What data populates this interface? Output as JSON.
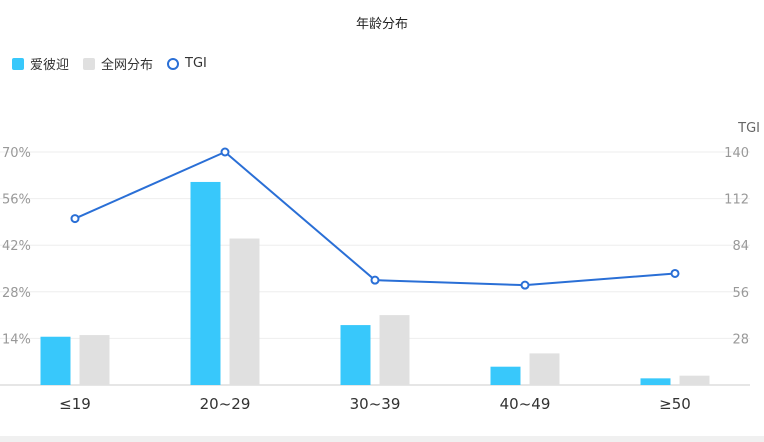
{
  "chart_data": {
    "type": "bar",
    "title": "年龄分布",
    "categories": [
      "≤19",
      "20~29",
      "30~39",
      "40~49",
      "≥50"
    ],
    "series": [
      {
        "name": "爱彼迎",
        "type": "bar",
        "axis": "left",
        "color": "#38c8fb",
        "values": [
          14.5,
          61,
          18,
          5.5,
          2
        ]
      },
      {
        "name": "全网分布",
        "type": "bar",
        "axis": "left",
        "color": "#e0e0e0",
        "values": [
          15,
          44,
          21,
          9.5,
          2.8
        ]
      },
      {
        "name": "TGI",
        "type": "line",
        "axis": "right",
        "color": "#2a6fd6",
        "values": [
          100,
          140,
          63,
          60,
          67
        ]
      }
    ],
    "y_left": {
      "min": 0,
      "max": 70,
      "ticks": [
        "70%",
        "56%",
        "42%",
        "28%",
        "14%"
      ],
      "tick_values": [
        70,
        56,
        42,
        28,
        14
      ]
    },
    "y_right": {
      "label": "TGI",
      "min": 0,
      "max": 140,
      "ticks": [
        "140",
        "112",
        "84",
        "56",
        "28"
      ],
      "tick_values": [
        140,
        112,
        84,
        56,
        28
      ]
    },
    "grid": true,
    "legend_position": "top-left"
  }
}
